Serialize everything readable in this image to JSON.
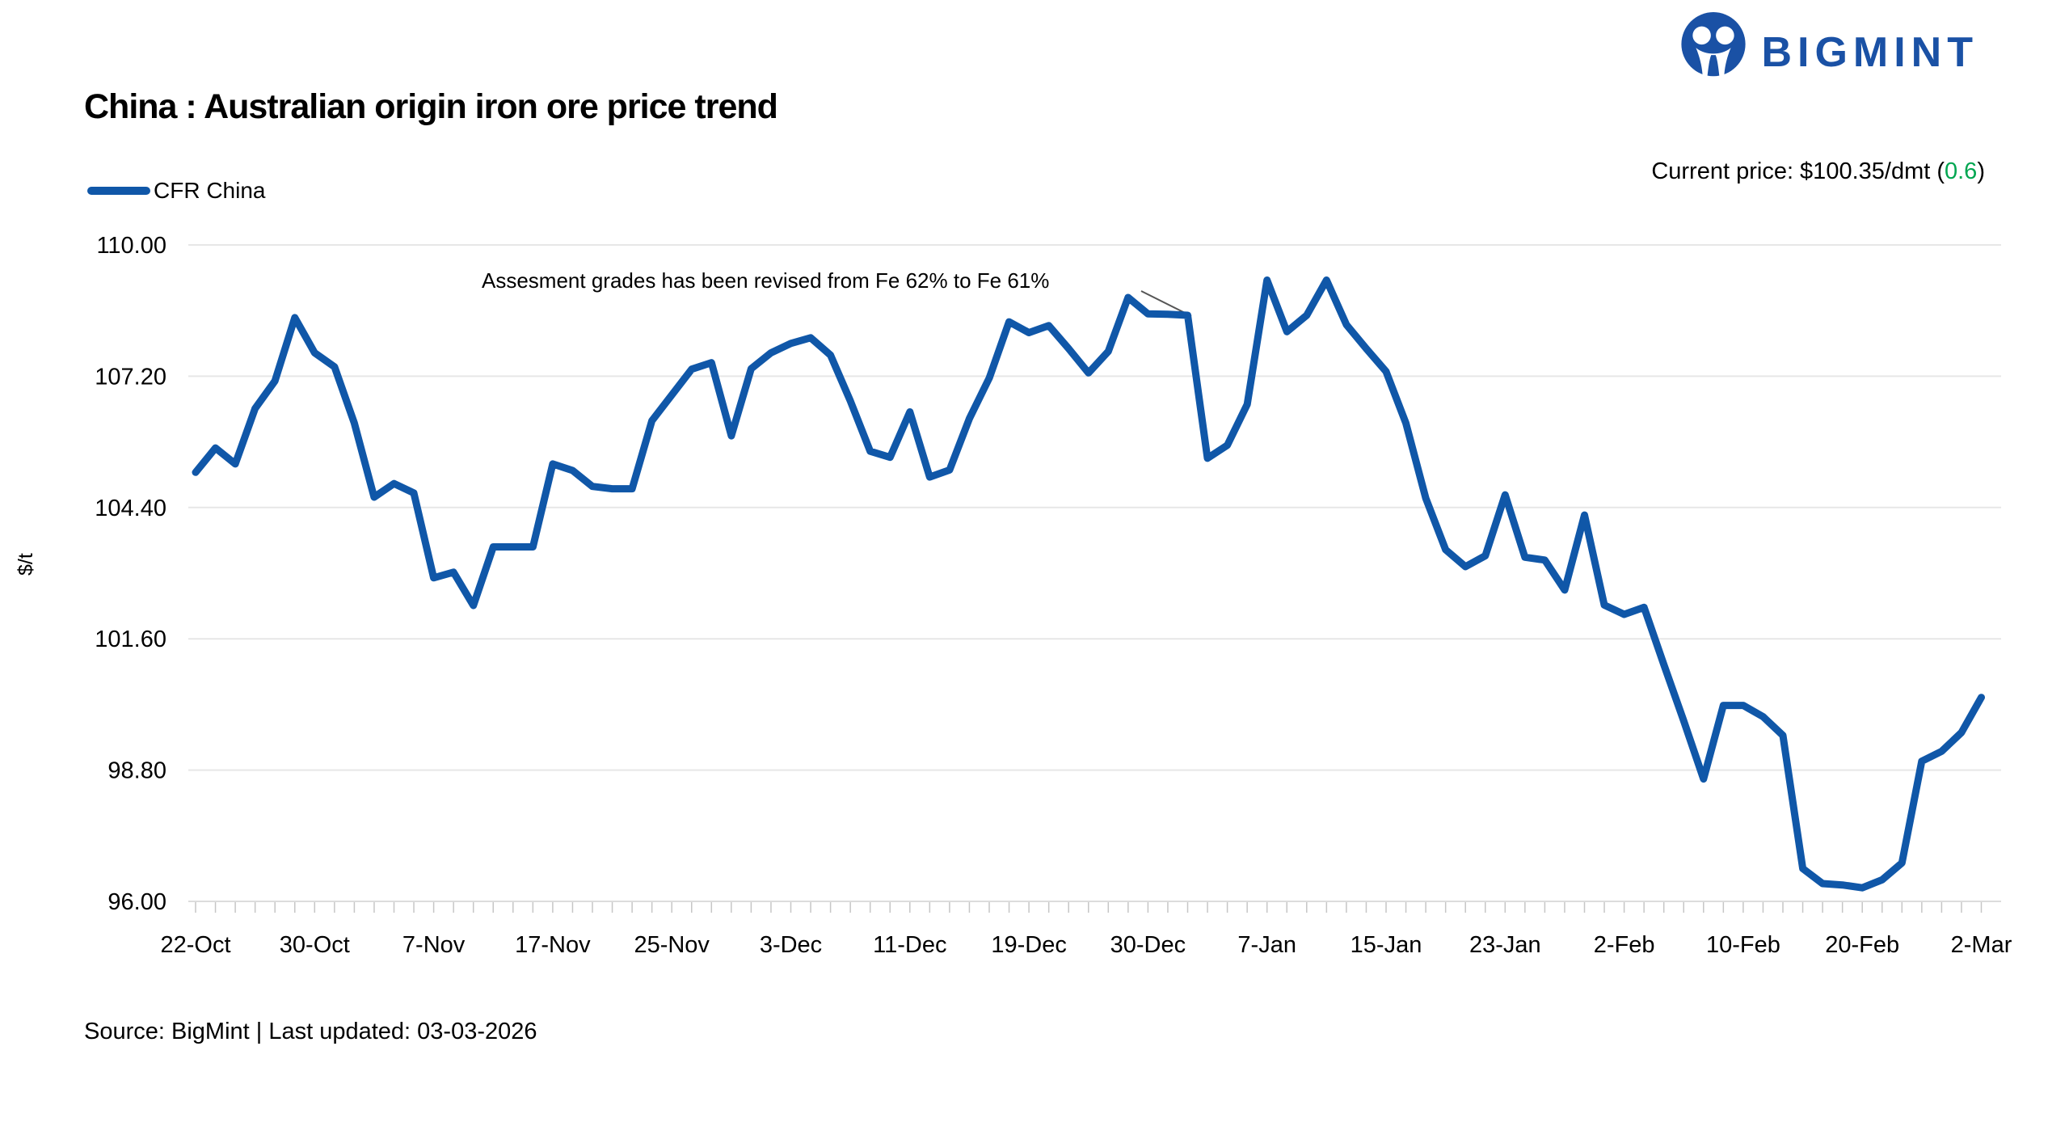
{
  "header": {
    "title": "China : Australian origin iron ore price trend",
    "logo_text": "BIGMINT",
    "current_price": {
      "prefix": "Current price: $100.35/dmt (",
      "change": "0.6",
      "suffix": ")"
    }
  },
  "legend": {
    "label": "CFR China"
  },
  "annotation": {
    "text": "Assesment grades has been revised from Fe 62% to Fe 61%"
  },
  "footer": {
    "source": "Source: BigMint | Last updated: 03-03-2026"
  },
  "colors": {
    "line": "#1057A8",
    "logo_blue": "#1A51A5",
    "change_green": "#00A651",
    "grid": "#E7E7E7",
    "axis": "#DCDCDC",
    "tick": "#C6C6C6",
    "annotation_leader": "#555555",
    "text": "#000000"
  },
  "chart_data": {
    "type": "line",
    "title": "China : Australian origin iron ore price trend",
    "xlabel": "",
    "ylabel": "$/t",
    "ylim": [
      96.0,
      110.0
    ],
    "yticks": [
      110.0,
      107.2,
      104.4,
      101.6,
      98.8,
      96.0
    ],
    "ytick_labels": [
      "110.00",
      "107.20",
      "104.40",
      "101.60",
      "98.80",
      "96.00"
    ],
    "x_tick_labels": [
      "22-Oct",
      "30-Oct",
      "7-Nov",
      "17-Nov",
      "25-Nov",
      "3-Dec",
      "11-Dec",
      "19-Dec",
      "30-Dec",
      "7-Jan",
      "15-Jan",
      "23-Jan",
      "2-Feb",
      "10-Feb",
      "20-Feb",
      "2-Mar"
    ],
    "points_per_x_tick": 6,
    "grid": true,
    "legend_position": "top-left",
    "annotation": {
      "text": "Assesment grades has been revised from Fe 62% to Fe 61%",
      "points_at_x_label": "30-Dec"
    },
    "current_price": "$100.35/dmt",
    "current_price_change": 0.6,
    "series": [
      {
        "name": "CFR China",
        "color": "#1057A8",
        "values": [
          105.15,
          105.67,
          105.33,
          106.51,
          107.1,
          108.45,
          107.7,
          107.4,
          106.2,
          104.62,
          104.91,
          104.71,
          102.9,
          103.02,
          102.31,
          103.56,
          103.56,
          103.56,
          105.33,
          105.19,
          104.85,
          104.8,
          104.8,
          106.25,
          106.8,
          107.35,
          107.49,
          105.93,
          107.36,
          107.7,
          107.9,
          108.02,
          107.65,
          106.67,
          105.6,
          105.47,
          106.44,
          105.05,
          105.2,
          106.3,
          107.16,
          108.36,
          108.13,
          108.28,
          107.79,
          107.27,
          107.73,
          108.88,
          108.53,
          108.52,
          108.5,
          105.45,
          105.73,
          106.6,
          109.25,
          108.15,
          108.5,
          109.25,
          108.3,
          107.79,
          107.3,
          106.2,
          104.6,
          103.5,
          103.14,
          103.37,
          104.67,
          103.34,
          103.28,
          102.64,
          104.24,
          102.32,
          102.12,
          102.27,
          101.05,
          99.85,
          98.61,
          100.18,
          100.18,
          99.94,
          99.54,
          96.7,
          96.38,
          96.35,
          96.29,
          96.46,
          96.82,
          98.99,
          99.2,
          99.6,
          100.35
        ]
      }
    ]
  }
}
